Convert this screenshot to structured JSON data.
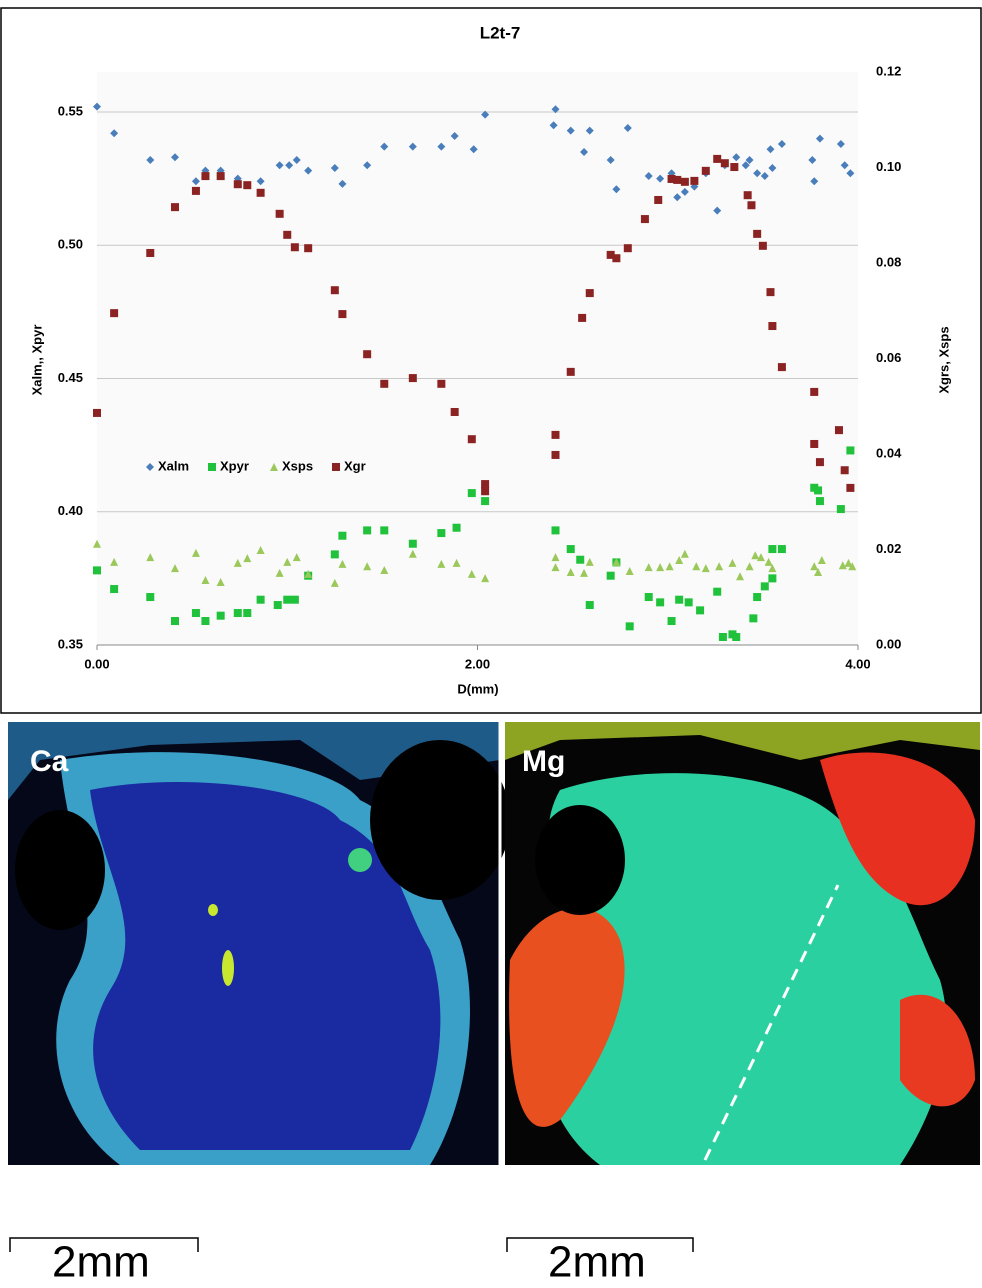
{
  "chart_data": {
    "type": "scatter",
    "title": "L2t-7",
    "x_label": "D(mm)",
    "y_label": "Xalm,, Xpyr",
    "y2_label": "Xgrs, Xsps",
    "xlim": [
      0,
      4
    ],
    "xticks": [
      {
        "value": 0,
        "label": "0.00"
      },
      {
        "value": 2,
        "label": "2.00"
      },
      {
        "value": 4,
        "label": "4.00"
      }
    ],
    "ylim": [
      0.35,
      0.565
    ],
    "yticks": [
      {
        "value": 0.35,
        "label": "0.35"
      },
      {
        "value": 0.4,
        "label": "0.40"
      },
      {
        "value": 0.45,
        "label": "0.45"
      },
      {
        "value": 0.5,
        "label": "0.50"
      },
      {
        "value": 0.55,
        "label": "0.55"
      }
    ],
    "y2lim": [
      0,
      0.12
    ],
    "y2ticks": [
      {
        "value": 0,
        "label": "0.00"
      },
      {
        "value": 0.02,
        "label": "0.02"
      },
      {
        "value": 0.04,
        "label": "0.04"
      },
      {
        "value": 0.06,
        "label": "0.06"
      },
      {
        "value": 0.08,
        "label": "0.08"
      },
      {
        "value": 0.1,
        "label": "0.10"
      },
      {
        "value": 0.12,
        "label": "0.12"
      }
    ],
    "grid": true,
    "legend": "left",
    "series": [
      {
        "name": "Xalm",
        "color": "#4a7ebb",
        "marker": "diamond",
        "x": [
          0,
          0.09,
          0.28,
          0.41,
          0.52,
          0.57,
          0.65,
          0.74,
          0.86,
          0.96,
          1.01,
          1.05,
          1.11,
          1.25,
          1.29,
          1.42,
          1.51,
          1.66,
          1.81,
          1.88,
          1.98,
          2.04,
          2.41,
          2.4,
          2.49,
          2.56,
          2.59,
          2.7,
          2.73,
          2.79,
          2.9,
          2.96,
          3.02,
          3.05,
          3.09,
          3.14,
          3.2,
          3.26,
          3.3,
          3.36,
          3.41,
          3.43,
          3.47,
          3.51,
          3.54,
          3.55,
          3.6,
          3.76,
          3.77,
          3.8,
          3.91,
          3.93,
          3.96
        ],
        "values": [
          0.552,
          0.542,
          0.532,
          0.533,
          0.524,
          0.528,
          0.528,
          0.525,
          0.524,
          0.53,
          0.53,
          0.532,
          0.528,
          0.529,
          0.523,
          0.53,
          0.537,
          0.537,
          0.537,
          0.541,
          0.536,
          0.549,
          0.551,
          0.545,
          0.543,
          0.535,
          0.543,
          0.532,
          0.521,
          0.544,
          0.526,
          0.525,
          0.527,
          0.518,
          0.52,
          0.522,
          0.527,
          0.513,
          0.53,
          0.533,
          0.53,
          0.532,
          0.527,
          0.526,
          0.536,
          0.529,
          0.538,
          0.532,
          0.524,
          0.54,
          0.538,
          0.53,
          0.527
        ]
      },
      {
        "name": "Xpyr",
        "color": "#1fc23a",
        "marker": "square",
        "x": [
          0,
          0.09,
          0.28,
          0.41,
          0.52,
          0.57,
          0.65,
          0.74,
          0.79,
          0.86,
          0.95,
          1.0,
          1.04,
          1.11,
          1.25,
          1.29,
          1.42,
          1.51,
          1.66,
          1.81,
          1.89,
          1.97,
          2.04,
          2.41,
          2.49,
          2.54,
          2.59,
          2.7,
          2.73,
          2.8,
          2.9,
          2.96,
          3.02,
          3.06,
          3.11,
          3.17,
          3.26,
          3.29,
          3.34,
          3.36,
          3.45,
          3.47,
          3.51,
          3.55,
          3.55,
          3.6,
          3.77,
          3.79,
          3.8,
          3.91,
          3.96
        ],
        "values": [
          0.378,
          0.371,
          0.368,
          0.359,
          0.362,
          0.359,
          0.361,
          0.362,
          0.362,
          0.367,
          0.365,
          0.367,
          0.367,
          0.376,
          0.384,
          0.391,
          0.393,
          0.393,
          0.388,
          0.392,
          0.394,
          0.407,
          0.404,
          0.393,
          0.386,
          0.382,
          0.365,
          0.376,
          0.381,
          0.357,
          0.368,
          0.366,
          0.359,
          0.367,
          0.366,
          0.363,
          0.37,
          0.353,
          0.354,
          0.353,
          0.36,
          0.368,
          0.372,
          0.375,
          0.386,
          0.386,
          0.409,
          0.408,
          0.404,
          0.401,
          0.423
        ]
      },
      {
        "name": "Xsps",
        "color": "#9bc85a",
        "marker": "triangle",
        "axis": "y2",
        "x": [
          0,
          0.09,
          0.28,
          0.41,
          0.52,
          0.57,
          0.65,
          0.74,
          0.79,
          0.86,
          0.96,
          1.0,
          1.05,
          1.11,
          1.25,
          1.29,
          1.42,
          1.51,
          1.66,
          1.81,
          1.89,
          1.97,
          2.04,
          2.41,
          2.41,
          2.49,
          2.56,
          2.59,
          2.73,
          2.8,
          2.9,
          2.96,
          3.01,
          3.06,
          3.09,
          3.15,
          3.2,
          3.27,
          3.34,
          3.38,
          3.43,
          3.46,
          3.49,
          3.53,
          3.55,
          3.77,
          3.79,
          3.81,
          3.92,
          3.95,
          3.97
        ],
        "values": [
          0.0212,
          0.0174,
          0.0184,
          0.0161,
          0.0193,
          0.0136,
          0.0132,
          0.0172,
          0.0182,
          0.0199,
          0.0151,
          0.0174,
          0.0184,
          0.0149,
          0.013,
          0.017,
          0.0165,
          0.0157,
          0.0191,
          0.017,
          0.0172,
          0.0149,
          0.014,
          0.0184,
          0.0163,
          0.0153,
          0.0151,
          0.0174,
          0.0174,
          0.0155,
          0.0163,
          0.0163,
          0.0165,
          0.0178,
          0.0191,
          0.0165,
          0.0161,
          0.0165,
          0.0172,
          0.0144,
          0.0165,
          0.0188,
          0.0184,
          0.0174,
          0.0161,
          0.0165,
          0.0153,
          0.0178,
          0.0167,
          0.0172,
          0.0165
        ]
      },
      {
        "name": "Xgr",
        "color": "#8b2323",
        "marker": "square",
        "axis": "y2",
        "x": [
          0,
          0.09,
          0.28,
          0.41,
          0.52,
          0.57,
          0.65,
          0.74,
          0.79,
          0.86,
          0.96,
          1.0,
          1.04,
          1.11,
          1.25,
          1.29,
          1.42,
          1.51,
          1.66,
          1.81,
          1.88,
          1.97,
          2.04,
          2.04,
          2.41,
          2.41,
          2.49,
          2.55,
          2.59,
          2.7,
          2.73,
          2.79,
          2.88,
          2.95,
          3.02,
          3.05,
          3.09,
          3.14,
          3.2,
          3.26,
          3.3,
          3.35,
          3.42,
          3.44,
          3.47,
          3.5,
          3.54,
          3.55,
          3.6,
          3.77,
          3.77,
          3.8,
          3.9,
          3.93,
          3.96
        ],
        "values": [
          0.0486,
          0.0695,
          0.0821,
          0.0917,
          0.0951,
          0.0982,
          0.0982,
          0.0965,
          0.0963,
          0.0947,
          0.0903,
          0.0859,
          0.0833,
          0.0831,
          0.0743,
          0.0693,
          0.0609,
          0.0547,
          0.0559,
          0.0547,
          0.0488,
          0.0431,
          0.0337,
          0.0322,
          0.044,
          0.0398,
          0.0572,
          0.0685,
          0.0737,
          0.0817,
          0.081,
          0.0831,
          0.0892,
          0.0932,
          0.0976,
          0.0974,
          0.097,
          0.0972,
          0.0993,
          0.1018,
          0.1009,
          0.1001,
          0.0942,
          0.0921,
          0.0861,
          0.0836,
          0.0739,
          0.0668,
          0.0582,
          0.053,
          0.0421,
          0.0383,
          0.045,
          0.0366,
          0.0329
        ]
      }
    ]
  },
  "panels": [
    {
      "label": "Ca",
      "scale_bar": "2mm"
    },
    {
      "label": "Mg",
      "scale_bar": "2mm"
    }
  ]
}
